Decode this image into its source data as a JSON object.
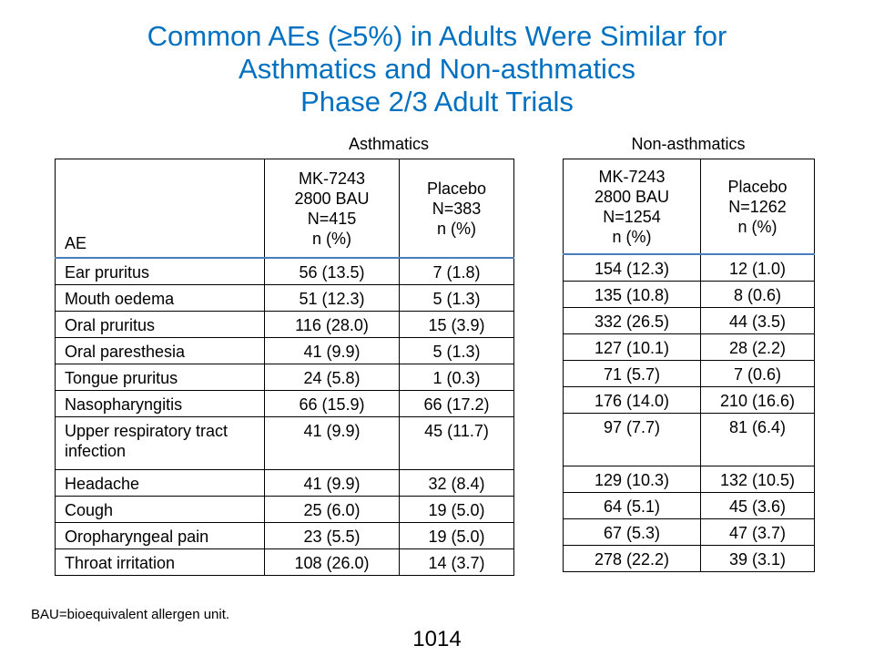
{
  "title": {
    "line1": "Common AEs (≥5%) in Adults Were Similar for",
    "line2": "Asthmatics and Non-asthmatics",
    "line3": "Phase 2/3 Adult Trials"
  },
  "groups": {
    "asthmatics": "Asthmatics",
    "non_asthmatics": "Non-asthmatics"
  },
  "asthmatics_header": {
    "ae": "AE",
    "mk": [
      "MK-7243",
      "2800 BAU",
      "N=415",
      "n (%)"
    ],
    "placebo": [
      "Placebo",
      "N=383",
      "n (%)"
    ]
  },
  "non_asthmatics_header": {
    "mk": [
      "MK-7243",
      "2800 BAU",
      "N=1254",
      "n (%)"
    ],
    "placebo": [
      "Placebo",
      "N=1262",
      "n (%)"
    ]
  },
  "rows": [
    {
      "ae": "Ear pruritus",
      "a_mk": "56 (13.5)",
      "a_pl": "7 (1.8)",
      "n_mk": "154 (12.3)",
      "n_pl": "12 (1.0)"
    },
    {
      "ae": "Mouth oedema",
      "a_mk": "51 (12.3)",
      "a_pl": "5 (1.3)",
      "n_mk": "135 (10.8)",
      "n_pl": "8 (0.6)"
    },
    {
      "ae": "Oral pruritus",
      "a_mk": "116 (28.0)",
      "a_pl": "15 (3.9)",
      "n_mk": "332 (26.5)",
      "n_pl": "44 (3.5)"
    },
    {
      "ae": "Oral paresthesia",
      "a_mk": "41 (9.9)",
      "a_pl": "5 (1.3)",
      "n_mk": "127 (10.1)",
      "n_pl": "28 (2.2)"
    },
    {
      "ae": "Tongue pruritus",
      "a_mk": "24 (5.8)",
      "a_pl": "1 (0.3)",
      "n_mk": "71 (5.7)",
      "n_pl": "7 (0.6)"
    },
    {
      "ae": "Nasopharyngitis",
      "a_mk": "66 (15.9)",
      "a_pl": "66 (17.2)",
      "n_mk": "176 (14.0)",
      "n_pl": "210 (16.6)"
    },
    {
      "ae": "Upper respiratory tract infection",
      "a_mk": "41 (9.9)",
      "a_pl": "45 (11.7)",
      "n_mk": "97 (7.7)",
      "n_pl": "81 (6.4)"
    },
    {
      "ae": "Headache",
      "a_mk": "41 (9.9)",
      "a_pl": "32 (8.4)",
      "n_mk": "129 (10.3)",
      "n_pl": "132 (10.5)"
    },
    {
      "ae": "Cough",
      "a_mk": "25 (6.0)",
      "a_pl": "19 (5.0)",
      "n_mk": "64 (5.1)",
      "n_pl": "45 (3.6)"
    },
    {
      "ae": "Oropharyngeal pain",
      "a_mk": "23 (5.5)",
      "a_pl": "19 (5.0)",
      "n_mk": "67 (5.3)",
      "n_pl": "47 (3.7)"
    },
    {
      "ae": "Throat irritation",
      "a_mk": "108 (26.0)",
      "a_pl": "14 (3.7)",
      "n_mk": "278 (22.2)",
      "n_pl": "39 (3.1)"
    }
  ],
  "footnote": "BAU=bioequivalent allergen unit.",
  "page_number": "1014"
}
